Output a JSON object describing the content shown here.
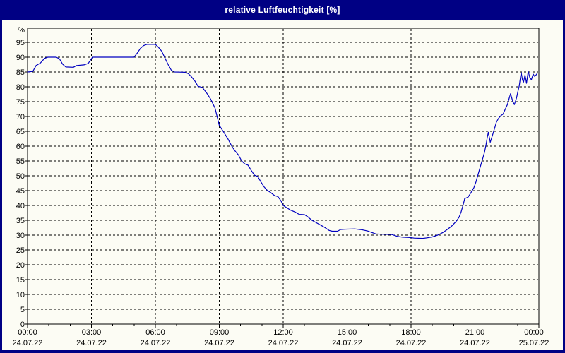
{
  "window": {
    "title": "relative Luftfeuchtigkeit [%]",
    "colors": {
      "title_bg": "#000084",
      "title_text": "#FFFFFF",
      "border": "#000084",
      "panel_bg": "#FCFCF4",
      "grid": "#000000",
      "axis": "#000000",
      "label": "#000000",
      "line": "#0000C0"
    }
  },
  "chart_data": {
    "type": "line",
    "title": "relative Luftfeuchtigkeit [%]",
    "unit_label": "%",
    "grid": {
      "horizontal": "dashed",
      "vertical": "dashed",
      "on": true
    },
    "legend": "none",
    "x_axis": {
      "start_hour": 0,
      "end_hour": 24,
      "major_step_hours": 3,
      "minor_step_hours": 1,
      "major_ticks": [
        {
          "time": "00:00",
          "date": "24.07.22"
        },
        {
          "time": "03:00",
          "date": "24.07.22"
        },
        {
          "time": "06:00",
          "date": "24.07.22"
        },
        {
          "time": "09:00",
          "date": "24.07.22"
        },
        {
          "time": "12:00",
          "date": "24.07.22"
        },
        {
          "time": "15:00",
          "date": "24.07.22"
        },
        {
          "time": "18:00",
          "date": "24.07.22"
        },
        {
          "time": "21:00",
          "date": "24.07.22"
        },
        {
          "time": "00:00",
          "date": "25.07.22"
        }
      ]
    },
    "y_axis": {
      "min": 0,
      "max": 99,
      "tick_step": 5,
      "unit": "%",
      "ticks": [
        0,
        5,
        10,
        15,
        20,
        25,
        30,
        35,
        40,
        45,
        50,
        55,
        60,
        65,
        70,
        75,
        80,
        85,
        90,
        95
      ]
    },
    "series": [
      {
        "name": "relative Luftfeuchtigkeit",
        "color": "#0000C0",
        "points": [
          [
            0,
            85
          ],
          [
            0.25,
            85.2
          ],
          [
            0.4,
            87.2
          ],
          [
            0.6,
            88
          ],
          [
            0.8,
            89.6
          ],
          [
            0.95,
            90
          ],
          [
            1.35,
            90
          ],
          [
            1.5,
            89.4
          ],
          [
            1.65,
            87.6
          ],
          [
            1.8,
            86.7
          ],
          [
            2.15,
            86.6
          ],
          [
            2.3,
            87.2
          ],
          [
            2.65,
            87.4
          ],
          [
            2.85,
            87.9
          ],
          [
            2.95,
            89
          ],
          [
            3.05,
            90
          ],
          [
            5,
            90
          ],
          [
            5.15,
            91.4
          ],
          [
            5.3,
            93
          ],
          [
            5.45,
            93.9
          ],
          [
            5.6,
            94.3
          ],
          [
            6,
            94.3
          ],
          [
            6.15,
            93.3
          ],
          [
            6.3,
            92
          ],
          [
            6.45,
            89.7
          ],
          [
            6.6,
            87.5
          ],
          [
            6.75,
            85.6
          ],
          [
            6.9,
            85
          ],
          [
            7.4,
            84.9
          ],
          [
            7.55,
            84.4
          ],
          [
            7.7,
            83.3
          ],
          [
            7.85,
            82
          ],
          [
            8,
            80.2
          ],
          [
            8.2,
            79.8
          ],
          [
            8.4,
            78
          ],
          [
            8.6,
            75.8
          ],
          [
            8.8,
            72.8
          ],
          [
            9,
            67
          ],
          [
            9.2,
            64.8
          ],
          [
            9.4,
            62.5
          ],
          [
            9.6,
            59.8
          ],
          [
            9.75,
            58.3
          ],
          [
            9.9,
            57
          ],
          [
            10.05,
            55
          ],
          [
            10.2,
            54
          ],
          [
            10.35,
            53.6
          ],
          [
            10.5,
            51.8
          ],
          [
            10.65,
            50.2
          ],
          [
            10.8,
            49.8
          ],
          [
            10.95,
            48
          ],
          [
            11.1,
            46.3
          ],
          [
            11.25,
            45.1
          ],
          [
            11.4,
            44.4
          ],
          [
            11.6,
            43.3
          ],
          [
            11.75,
            43
          ],
          [
            11.9,
            41.5
          ],
          [
            12,
            40
          ],
          [
            12.15,
            39.3
          ],
          [
            12.35,
            38.4
          ],
          [
            12.55,
            37.8
          ],
          [
            12.75,
            37
          ],
          [
            13,
            36.9
          ],
          [
            13.15,
            36.2
          ],
          [
            13.35,
            35
          ],
          [
            13.55,
            34.2
          ],
          [
            13.75,
            33.4
          ],
          [
            13.95,
            32.6
          ],
          [
            14.15,
            31.6
          ],
          [
            14.3,
            31.3
          ],
          [
            14.55,
            31.3
          ],
          [
            14.7,
            31.9
          ],
          [
            14.9,
            32
          ],
          [
            15.35,
            32.1
          ],
          [
            15.7,
            31.8
          ],
          [
            15.95,
            31.4
          ],
          [
            16.15,
            30.9
          ],
          [
            16.35,
            30.4
          ],
          [
            16.6,
            30.3
          ],
          [
            17.1,
            30.2
          ],
          [
            17.35,
            29.6
          ],
          [
            17.6,
            29.3
          ],
          [
            17.95,
            29.2
          ],
          [
            18.15,
            29
          ],
          [
            18.55,
            28.9
          ],
          [
            18.75,
            29.1
          ],
          [
            19,
            29.4
          ],
          [
            19.25,
            30
          ],
          [
            19.5,
            30.9
          ],
          [
            19.7,
            31.9
          ],
          [
            19.9,
            33
          ],
          [
            20.1,
            34.5
          ],
          [
            20.25,
            36
          ],
          [
            20.35,
            37.8
          ],
          [
            20.45,
            40.3
          ],
          [
            20.52,
            42.3
          ],
          [
            20.68,
            42.8
          ],
          [
            20.8,
            44.2
          ],
          [
            20.95,
            46
          ],
          [
            21.05,
            48
          ],
          [
            21.15,
            50.5
          ],
          [
            21.25,
            53
          ],
          [
            21.35,
            55.5
          ],
          [
            21.45,
            58
          ],
          [
            21.52,
            60.5
          ],
          [
            21.58,
            63
          ],
          [
            21.63,
            64.7
          ],
          [
            21.72,
            61.3
          ],
          [
            21.82,
            63.6
          ],
          [
            21.92,
            66
          ],
          [
            22,
            68
          ],
          [
            22.1,
            69.3
          ],
          [
            22.2,
            70.2
          ],
          [
            22.32,
            70.8
          ],
          [
            22.42,
            72.4
          ],
          [
            22.52,
            74
          ],
          [
            22.6,
            76
          ],
          [
            22.67,
            77.7
          ],
          [
            22.77,
            75.2
          ],
          [
            22.85,
            74
          ],
          [
            22.95,
            76.2
          ],
          [
            23.02,
            78.5
          ],
          [
            23.08,
            80.3
          ],
          [
            23.12,
            82.5
          ],
          [
            23.17,
            84.8
          ],
          [
            23.23,
            82.3
          ],
          [
            23.28,
            81.6
          ],
          [
            23.35,
            84
          ],
          [
            23.42,
            81.2
          ],
          [
            23.5,
            85.2
          ],
          [
            23.58,
            83
          ],
          [
            23.65,
            82.4
          ],
          [
            23.73,
            84.3
          ],
          [
            23.8,
            83.5
          ],
          [
            23.87,
            84
          ],
          [
            23.93,
            84.6
          ]
        ]
      }
    ]
  }
}
